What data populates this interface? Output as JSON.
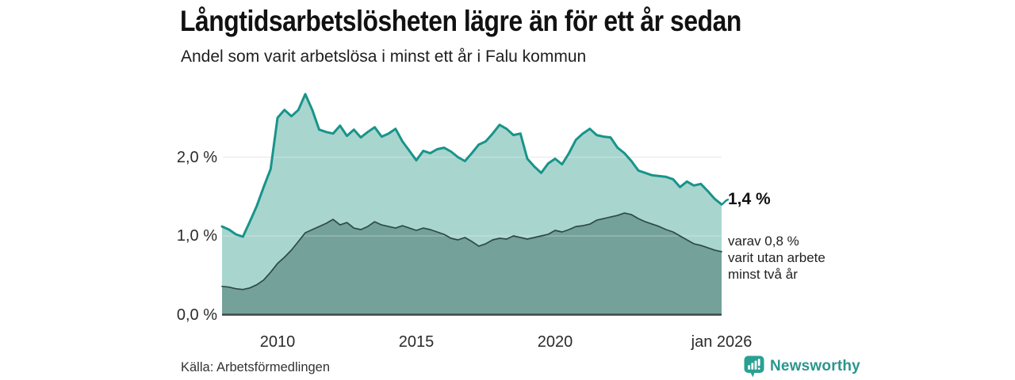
{
  "header": {
    "title": "Långtidsarbetslösheten lägre än för ett år sedan",
    "subtitle": "Andel som varit arbetslösa i minst ett år i Falu kommun"
  },
  "chart_data": {
    "type": "area",
    "title": "Långtidsarbetslösheten lägre än för ett år sedan",
    "subtitle": "Andel som varit arbetslösa i minst ett år i Falu kommun",
    "unit": "%",
    "xlim": [
      2008,
      2026
    ],
    "ylim": [
      0,
      2.9
    ],
    "grid": "horizontal",
    "x": [
      2008,
      2008.25,
      2008.5,
      2008.75,
      2009,
      2009.25,
      2009.5,
      2009.75,
      2010,
      2010.25,
      2010.5,
      2010.75,
      2011,
      2011.25,
      2011.5,
      2011.75,
      2012,
      2012.25,
      2012.5,
      2012.75,
      2013,
      2013.25,
      2013.5,
      2013.75,
      2014,
      2014.25,
      2014.5,
      2014.75,
      2015,
      2015.25,
      2015.5,
      2015.75,
      2016,
      2016.25,
      2016.5,
      2016.75,
      2017,
      2017.25,
      2017.5,
      2017.75,
      2018,
      2018.25,
      2018.5,
      2018.75,
      2019,
      2019.25,
      2019.5,
      2019.75,
      2020,
      2020.25,
      2020.5,
      2020.75,
      2021,
      2021.25,
      2021.5,
      2021.75,
      2022,
      2022.25,
      2022.5,
      2022.75,
      2023,
      2023.25,
      2023.5,
      2023.75,
      2024,
      2024.25,
      2024.5,
      2024.75,
      2025,
      2025.25,
      2025.5,
      2025.75,
      2026
    ],
    "series": [
      {
        "name": "Andel som varit arbetslösa i minst ett år",
        "line_color": "#18948a",
        "fill_color": "#a9d5cf",
        "end_value_label": "1,4 %",
        "values": [
          1.12,
          1.08,
          1.02,
          0.99,
          1.18,
          1.38,
          1.62,
          1.85,
          2.5,
          2.6,
          2.52,
          2.6,
          2.8,
          2.6,
          2.35,
          2.32,
          2.3,
          2.4,
          2.27,
          2.35,
          2.25,
          2.32,
          2.38,
          2.26,
          2.3,
          2.36,
          2.2,
          2.08,
          1.96,
          2.08,
          2.05,
          2.1,
          2.12,
          2.07,
          2.0,
          1.95,
          2.05,
          2.16,
          2.2,
          2.3,
          2.41,
          2.36,
          2.28,
          2.3,
          1.98,
          1.88,
          1.8,
          1.92,
          1.98,
          1.91,
          2.05,
          2.22,
          2.3,
          2.36,
          2.28,
          2.26,
          2.25,
          2.12,
          2.05,
          1.95,
          1.83,
          1.8,
          1.77,
          1.76,
          1.75,
          1.72,
          1.62,
          1.69,
          1.64,
          1.66,
          1.57,
          1.47,
          1.4
        ]
      },
      {
        "name": "varav utan arbete minst två år",
        "line_color": "#2e4a45",
        "fill_color": "#74a19a",
        "end_value_label": "0,8 %",
        "values": [
          0.36,
          0.35,
          0.33,
          0.32,
          0.34,
          0.38,
          0.44,
          0.54,
          0.65,
          0.73,
          0.82,
          0.93,
          1.04,
          1.08,
          1.12,
          1.16,
          1.21,
          1.14,
          1.17,
          1.1,
          1.08,
          1.12,
          1.18,
          1.14,
          1.12,
          1.1,
          1.13,
          1.1,
          1.07,
          1.1,
          1.08,
          1.05,
          1.02,
          0.97,
          0.95,
          0.98,
          0.93,
          0.87,
          0.9,
          0.95,
          0.97,
          0.96,
          1.0,
          0.98,
          0.96,
          0.98,
          1.0,
          1.02,
          1.07,
          1.05,
          1.08,
          1.12,
          1.13,
          1.15,
          1.2,
          1.22,
          1.24,
          1.26,
          1.29,
          1.27,
          1.22,
          1.18,
          1.15,
          1.12,
          1.08,
          1.05,
          1.0,
          0.95,
          0.9,
          0.88,
          0.85,
          0.82,
          0.8
        ]
      }
    ],
    "yticks": [
      {
        "value": 0.0,
        "label": "0,0 %"
      },
      {
        "value": 1.0,
        "label": "1,0 %"
      },
      {
        "value": 2.0,
        "label": "2,0 %"
      }
    ],
    "xticks": [
      {
        "value": 2010,
        "label": "2010"
      },
      {
        "value": 2015,
        "label": "2015"
      },
      {
        "value": 2020,
        "label": "2020"
      },
      {
        "value": 2026,
        "label": "jan 2026"
      }
    ],
    "annotations": {
      "end_total": "1,4 %",
      "end_sub": "varav 0,8 %\nvarit utan arbete\nminst två år"
    },
    "colors": {
      "gridline": "#e1e2e9",
      "axis": "#3d4846"
    }
  },
  "footer": {
    "source": "Källa: Arbetsförmedlingen",
    "brand": "Newsworthy",
    "brand_color": "#2b968c",
    "logo_icon": "bar-chart-speech-bubble"
  }
}
